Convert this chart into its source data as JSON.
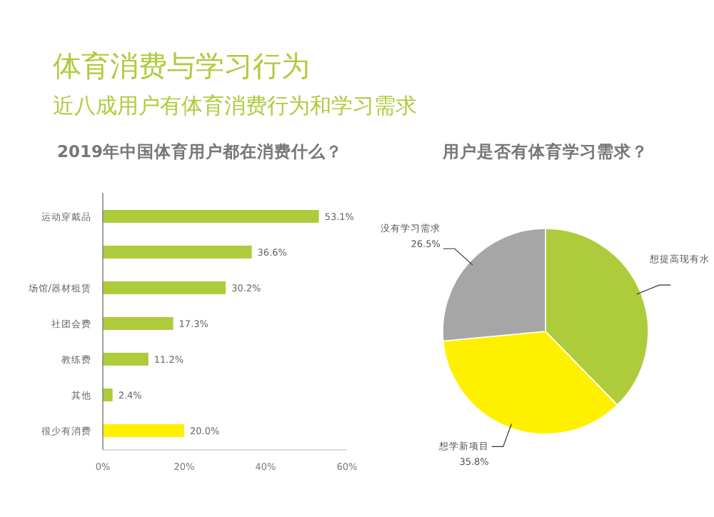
{
  "chart_data": [
    {
      "type": "other",
      "title": "体育消费与学习行为",
      "subtitle": "近八成用户有体育消费行为和学习需求"
    },
    {
      "type": "bar",
      "title": "2019年中国体育用户都在消费什么？",
      "orientation": "horizontal",
      "categories": [
        "运动穿戴品",
        null,
        "场馆/器材租赁",
        "社团会费",
        "教练费",
        "其他",
        "很少有消费"
      ],
      "values": [
        53.1,
        36.6,
        30.2,
        17.3,
        11.2,
        2.4,
        20.0
      ],
      "colors": [
        "#aecb3c",
        "#aecb3c",
        "#aecb3c",
        "#aecb3c",
        "#aecb3c",
        "#aecb3c",
        "#fff000"
      ],
      "value_labels": [
        "53.1%",
        "36.6%",
        "30.2%",
        "17.3%",
        "11.2%",
        "2.4%",
        "20.0%"
      ],
      "xlim": [
        0,
        60
      ],
      "xticks": [
        {
          "value": 0,
          "label": "0%"
        },
        {
          "value": 20,
          "label": "20%"
        },
        {
          "value": 40,
          "label": "40%"
        },
        {
          "value": 60,
          "label": "60%"
        }
      ],
      "grid": false
    },
    {
      "type": "pie",
      "title": "用户是否有体育学习需求？",
      "categories": [
        "想提高现有水",
        "想学新项目",
        "没有学习需求"
      ],
      "values": [
        37.7,
        35.8,
        26.5
      ],
      "colors": [
        "#aecb3c",
        "#fff000",
        "#a6a6a6"
      ],
      "value_labels": [
        null,
        "35.8%",
        "26.5%"
      ]
    }
  ]
}
